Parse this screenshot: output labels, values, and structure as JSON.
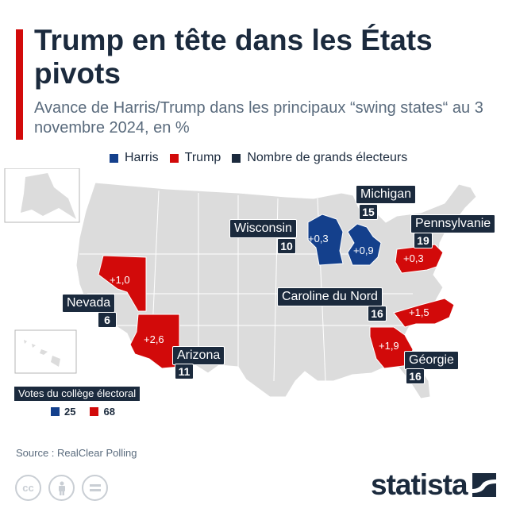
{
  "title": "Trump en tête dans les États pivots",
  "subtitle": "Avance de Harris/Trump dans les principaux “swing states“ au 3 novembre 2024, en %",
  "legend": {
    "harris": "Harris",
    "trump": "Trump",
    "electors": "Nombre de grands électeurs"
  },
  "colors": {
    "harris": "#14408c",
    "trump": "#d20a0a",
    "electors": "#1b2a3d",
    "land": "#dcdcdc",
    "accent": "#d20a0a"
  },
  "states": [
    {
      "name": "Wisconsin",
      "leader": "Harris",
      "margin": "+0,3",
      "electors": "10"
    },
    {
      "name": "Michigan",
      "leader": "Harris",
      "margin": "+0,9",
      "electors": "15"
    },
    {
      "name": "Pennsylvanie",
      "leader": "Trump",
      "margin": "+0,3",
      "electors": "19"
    },
    {
      "name": "Nevada",
      "leader": "Trump",
      "margin": "+1,0",
      "electors": "6"
    },
    {
      "name": "Arizona",
      "leader": "Trump",
      "margin": "+2,6",
      "electors": "11"
    },
    {
      "name": "Caroline du Nord",
      "leader": "Trump",
      "margin": "+1,5",
      "electors": "16"
    },
    {
      "name": "Géorgie",
      "leader": "Trump",
      "margin": "+1,9",
      "electors": "16"
    }
  ],
  "votes_box": {
    "title": "Votes du collège électoral",
    "harris_votes": "25",
    "trump_votes": "68"
  },
  "source": "Source : RealClear Polling",
  "brand": "statista",
  "cc_icons": [
    "cc-icon",
    "attribution-icon",
    "no-derivatives-icon"
  ]
}
